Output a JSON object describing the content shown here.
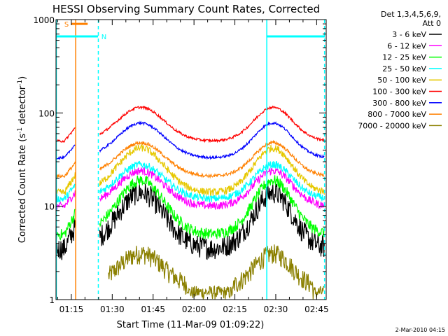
{
  "chart_data": {
    "type": "line",
    "title": "HESSI Observing Summary Count Rates, Corrected",
    "xlabel": "Start Time (11-Mar-09 01:09:22)",
    "ylabel_main": "Corrected Count Rate (s",
    "ylabel_sup1": "-1",
    "ylabel_mid": " detector",
    "ylabel_sup2": "-1",
    "ylabel_end": ")",
    "yscale": "log",
    "ylim": [
      1,
      1000
    ],
    "xlim_minutes": [
      69.37,
      168.5
    ],
    "xticks": [
      {
        "m": 75,
        "label": "01:15"
      },
      {
        "m": 90,
        "label": "01:30"
      },
      {
        "m": 105,
        "label": "01:45"
      },
      {
        "m": 120,
        "label": "02:00"
      },
      {
        "m": 135,
        "label": "02:15"
      },
      {
        "m": 150,
        "label": "02:30"
      },
      {
        "m": 165,
        "label": "02:45"
      }
    ],
    "yticks": [
      {
        "v": 1,
        "label": "1"
      },
      {
        "v": 10,
        "label": "10"
      },
      {
        "v": 100,
        "label": "100"
      },
      {
        "v": 1000,
        "label": "1000"
      }
    ],
    "legend_header": [
      "Det 1,3,4,5,6,9,",
      "Att 0"
    ],
    "legend_position": "right",
    "series": [
      {
        "name": "3 - 6 keV",
        "color": "#000000",
        "base": 3.5,
        "peak": 14,
        "noise": 0.28
      },
      {
        "name": "6 - 12 keV",
        "color": "#ff00ff",
        "base": 10,
        "peak": 24,
        "noise": 0.1
      },
      {
        "name": "12 - 25 keV",
        "color": "#00ff00",
        "base": 5,
        "peak": 19,
        "noise": 0.14
      },
      {
        "name": "25 - 50 keV",
        "color": "#00ffff",
        "base": 12,
        "peak": 28,
        "noise": 0.09
      },
      {
        "name": "50 - 100 keV",
        "color": "#e6c800",
        "base": 14,
        "peak": 42,
        "noise": 0.09
      },
      {
        "name": "100 - 300 keV",
        "color": "#ff0000",
        "base": 50,
        "peak": 115,
        "noise": 0.03
      },
      {
        "name": "300 - 800 keV",
        "color": "#0000ff",
        "base": 33,
        "peak": 78,
        "noise": 0.03
      },
      {
        "name": "800 - 7000 keV",
        "color": "#ff8000",
        "base": 21,
        "peak": 48,
        "noise": 0.04
      },
      {
        "name": "7000 - 20000 keV",
        "color": "#8b8000",
        "base": 1.0,
        "peak": 3.4,
        "noise": 0.2
      }
    ],
    "data_gaps": [
      {
        "start": 76.5,
        "end": 85.3
      }
    ],
    "flags": [
      {
        "label": "S",
        "color": "#ff8000",
        "start": 75.0,
        "end": 81.0,
        "value": 900
      },
      {
        "label": "N",
        "color": "#00ffff",
        "start": 69.4,
        "end": 84.8,
        "value": 660,
        "label_at": 86.0
      },
      {
        "label": "",
        "color": "#00ffff",
        "start": 146.7,
        "end": 168.0,
        "value": 660
      }
    ],
    "vertical_markers": [
      {
        "m": 69.5,
        "color": "#00ffff",
        "style": "solid"
      },
      {
        "m": 76.6,
        "color": "#ff8000",
        "style": "solid"
      },
      {
        "m": 84.9,
        "color": "#00ffff",
        "style": "dashed"
      },
      {
        "m": 146.7,
        "color": "#00ffff",
        "style": "solid"
      },
      {
        "m": 167.9,
        "color": "#00ffff",
        "style": "dashed"
      }
    ],
    "footer_text": "2-Mar-2010 04:15"
  }
}
